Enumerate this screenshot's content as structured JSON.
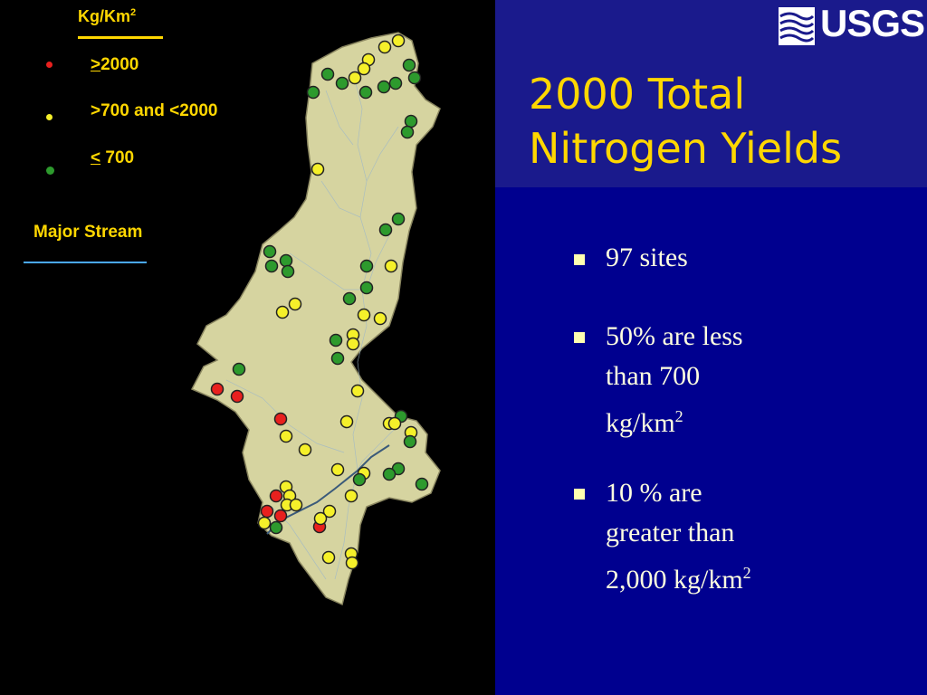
{
  "title_line1": "2000 Total",
  "title_line2": "Nitrogen Yields",
  "logo_text": "USGS",
  "legend": {
    "title": "Kg/Km",
    "title_sup": "2",
    "items": [
      {
        "prefix": ">",
        "text": "2000",
        "color": "#e8201e"
      },
      {
        "prefix": "",
        "text": ">700 and  <2000",
        "color": "#f5f02a"
      },
      {
        "prefix": "<",
        "text": " 700",
        "color": "#2d9a2d"
      }
    ],
    "stream_label": "Major Stream",
    "stream_color": "#4aa8ff"
  },
  "colors": {
    "high": "#e8201e",
    "medium": "#f5f02a",
    "low": "#2d9a2d",
    "basin_fill": "#d6d4a0",
    "title": "#ffd700"
  },
  "bullets": [
    {
      "lines": [
        "97 sites"
      ]
    },
    {
      "lines": [
        "50%  are  less",
        "than  700",
        "kg/km"
      ],
      "sup": "2"
    },
    {
      "lines": [
        "10 % are",
        "greater than",
        "2,000 kg/km"
      ],
      "sup": "2"
    }
  ]
}
